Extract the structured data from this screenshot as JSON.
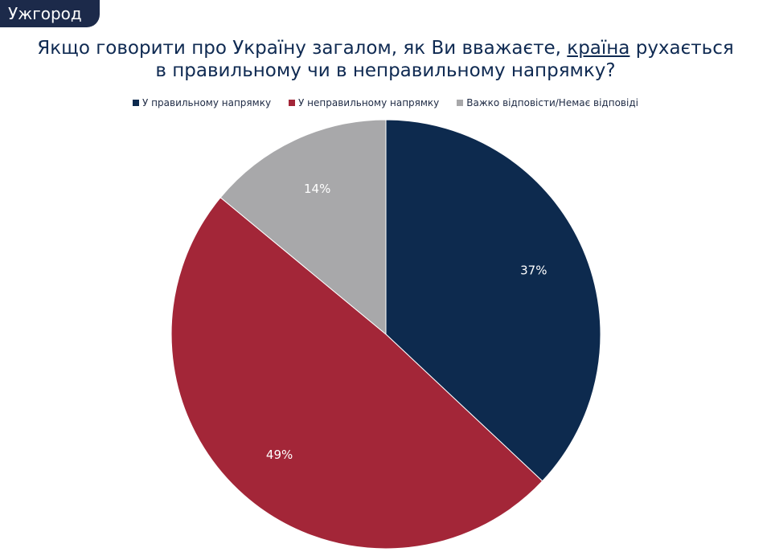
{
  "header": {
    "city": "Ужгород"
  },
  "chart_data": {
    "type": "pie",
    "title_line1_pre": "Якщо говорити про Україну загалом, як Ви вважаєте, ",
    "title_line1_underlined": "країна",
    "title_line1_post": " рухається",
    "title_line2": "в правильному чи в неправильному напрямку?",
    "legend_placement": "top",
    "slices": [
      {
        "label": "У правильному напрямку",
        "value": 37,
        "value_label": "37%",
        "color": "#0d2a4e"
      },
      {
        "label": "У неправильному напрямку",
        "value": 49,
        "value_label": "49%",
        "color": "#a32638"
      },
      {
        "label": "Важко відповісти/Немає відповіді",
        "value": 14,
        "value_label": "14%",
        "color": "#a8a8aa"
      }
    ]
  }
}
